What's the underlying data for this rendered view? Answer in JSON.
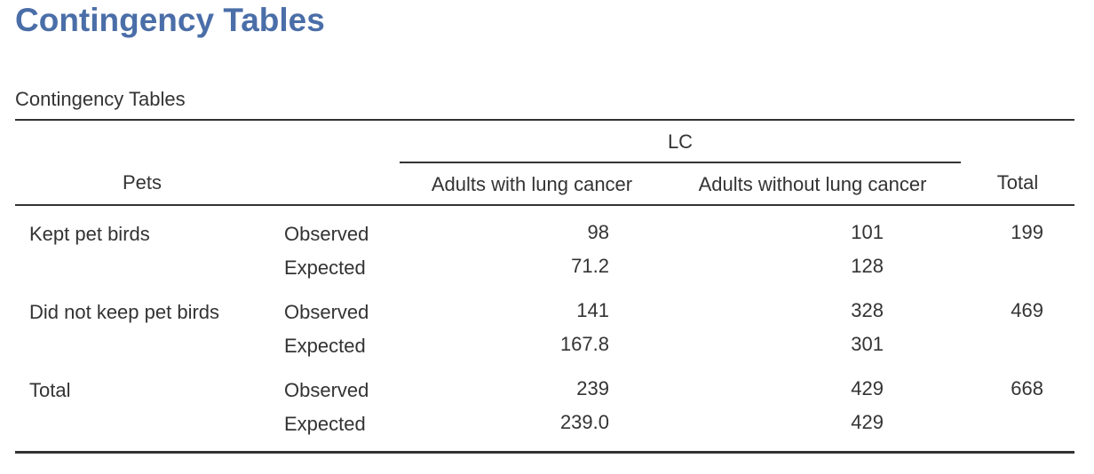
{
  "heading": "Contingency Tables",
  "table": {
    "title": "Contingency Tables",
    "row_header": "Pets",
    "column_group": "LC",
    "columns": [
      "Adults with lung cancer",
      "Adults without lung cancer"
    ],
    "total_header": "Total",
    "rows": [
      {
        "label": "Kept pet birds",
        "observed_label": "Observed",
        "expected_label": "Expected",
        "observed": [
          "98",
          "101"
        ],
        "expected": [
          "71.2",
          "128"
        ],
        "total": "199"
      },
      {
        "label": "Did not keep pet birds",
        "observed_label": "Observed",
        "expected_label": "Expected",
        "observed": [
          "141",
          "328"
        ],
        "expected": [
          "167.8",
          "301"
        ],
        "total": "469"
      },
      {
        "label": "Total",
        "observed_label": "Observed",
        "expected_label": "Expected",
        "observed": [
          "239",
          "429"
        ],
        "expected": [
          "239.0",
          "429"
        ],
        "total": "668"
      }
    ]
  }
}
